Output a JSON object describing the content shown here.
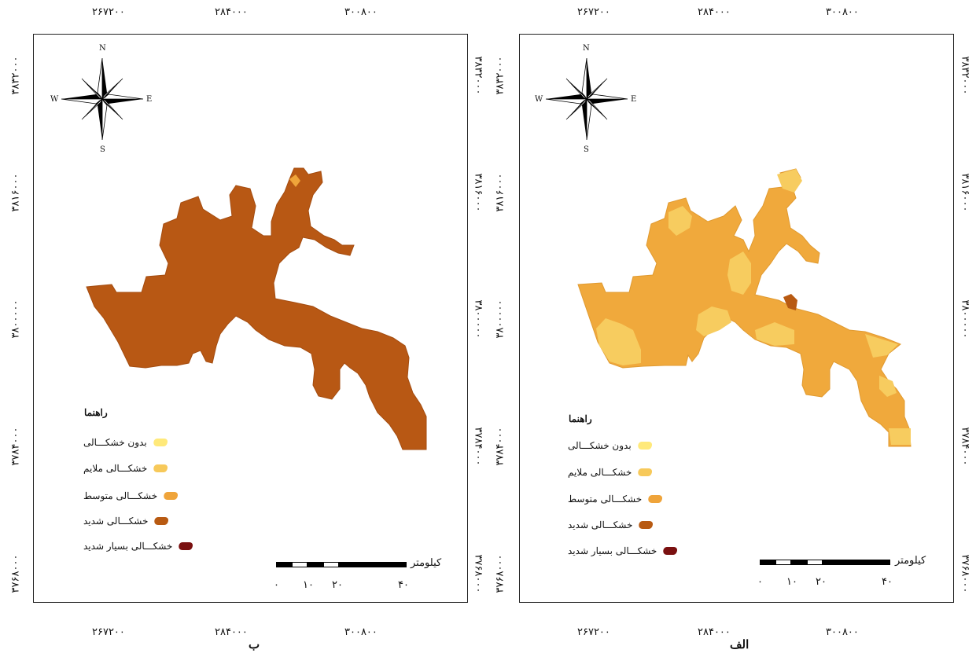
{
  "panels": [
    {
      "id": "right",
      "label": "الف",
      "x_ticks": [
        "۲۶۷۲۰۰",
        "۲۸۴۰۰۰",
        "۳۰۰۸۰۰"
      ],
      "y_ticks": [
        "۳۸۳۲۰۰۰",
        "۳۸۱۶۰۰۰",
        "۳۸۰۰۰۰۰",
        "۳۷۸۴۰۰۰",
        "۳۷۶۸۰۰۰"
      ],
      "compass": {
        "n": "N",
        "s": "S",
        "e": "E",
        "w": "W"
      },
      "legend": {
        "title": "راهنما",
        "items": [
          {
            "label": "بدون خشکـــالی",
            "color": "#FFE97A"
          },
          {
            "label": "خشکـــالی ملایم",
            "color": "#F7C95A"
          },
          {
            "label": "خشکـــالی متوسط",
            "color": "#EFA43A"
          },
          {
            "label": "خشکـــالی شدید",
            "color": "#B85A12"
          },
          {
            "label": "خشکـــالی بسیار شدید",
            "color": "#7A1010"
          }
        ]
      },
      "scale": {
        "unit": "کیلومتر",
        "labels": [
          "۰",
          "۱۰",
          "۲۰",
          "۴۰"
        ]
      }
    },
    {
      "id": "left",
      "label": "ب",
      "x_ticks": [
        "۲۶۷۲۰۰",
        "۲۸۴۰۰۰",
        "۳۰۰۸۰۰"
      ],
      "y_ticks": [
        "۳۸۳۲۰۰۰",
        "۳۸۱۶۰۰۰",
        "۳۸۰۰۰۰۰",
        "۳۷۸۴۰۰۰",
        "۳۷۶۸۰۰۰"
      ],
      "compass": {
        "n": "N",
        "s": "S",
        "e": "E",
        "w": "W"
      },
      "legend": {
        "title": "راهنما",
        "items": [
          {
            "label": "بدون خشکـــالی",
            "color": "#FFE97A"
          },
          {
            "label": "خشکـــالی ملایم",
            "color": "#F7C95A"
          },
          {
            "label": "خشکـــالی متوسط",
            "color": "#EFA43A"
          },
          {
            "label": "خشکـــالی شدید",
            "color": "#B85A12"
          },
          {
            "label": "خشکـــالی بسیار شدید",
            "color": "#7A1010"
          }
        ]
      },
      "scale": {
        "unit": "کیلومتر",
        "labels": [
          "۰",
          "۱۰",
          "۲۰",
          "۴۰"
        ]
      }
    }
  ],
  "colors": {
    "basin_right": "#F0A93C",
    "patch_light": "#F7CC5F",
    "patch_dark": "#B85A12",
    "basin_left": "#B85814"
  }
}
